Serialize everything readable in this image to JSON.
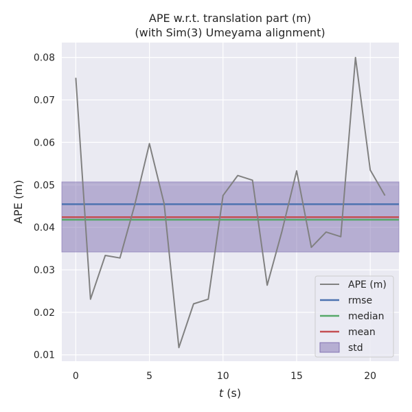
{
  "chart_data": {
    "type": "line",
    "title": [
      "APE w.r.t. translation part (m)",
      "(with Sim(3) Umeyama alignment)"
    ],
    "xlabel_var": "t",
    "xlabel_unit": " (s)",
    "ylabel": "APE (m)",
    "xlim": [
      -0.95,
      21.95
    ],
    "ylim": [
      0.0085,
      0.0835
    ],
    "xticks": [
      0,
      5,
      10,
      15,
      20
    ],
    "yticks": [
      0.01,
      0.02,
      0.03,
      0.04,
      0.05,
      0.06,
      0.07,
      0.08
    ],
    "ytick_labels": [
      "0.01",
      "0.02",
      "0.03",
      "0.04",
      "0.05",
      "0.06",
      "0.07",
      "0.08"
    ],
    "grid": true,
    "legend_position": "bottom-right",
    "series": [
      {
        "name": "APE (m)",
        "color": "#808080",
        "x": [
          0,
          1,
          2,
          3,
          4,
          5,
          6,
          7,
          8,
          9,
          10,
          11,
          12,
          13,
          14,
          15,
          16,
          17,
          18,
          19,
          20,
          21
        ],
        "values": [
          0.0752,
          0.0231,
          0.0334,
          0.0328,
          0.0452,
          0.0597,
          0.0456,
          0.0117,
          0.022,
          0.0231,
          0.0475,
          0.0522,
          0.0511,
          0.0264,
          0.039,
          0.0533,
          0.0353,
          0.0389,
          0.0378,
          0.08,
          0.0535,
          0.0475
        ]
      }
    ],
    "stats": [
      {
        "name": "rmse",
        "value": 0.04545,
        "color": "#4c72b0"
      },
      {
        "name": "median",
        "value": 0.0418,
        "color": "#55a868"
      },
      {
        "name": "mean",
        "value": 0.0424,
        "color": "#c44e52"
      }
    ],
    "std": {
      "name": "std",
      "low": 0.0342,
      "high": 0.0507,
      "color": "#8172b2"
    }
  }
}
